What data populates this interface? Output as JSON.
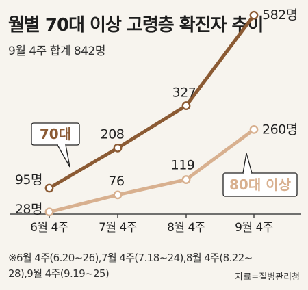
{
  "header": {
    "title": "월별 70대 이상 고령층 확진자 추이",
    "subtitle": "9월 4주 합계 842명"
  },
  "footer": {
    "note_line1": "※6월 4주(6.20~26),7월 4주(7.18~24),8월 4주(8.22~",
    "note_line2": "28),9월 4주(9.19~25)",
    "source": "자료=질병관리청"
  },
  "colors": {
    "series_70": "#8b5a33",
    "series_80": "#d8b08f",
    "axis": "#444444",
    "background": "#f7f4ee"
  },
  "chart_data": {
    "type": "line",
    "categories": [
      "6월 4주",
      "7월 4주",
      "8월 4주",
      "9월 4주"
    ],
    "series": [
      {
        "name": "70대",
        "values": [
          95,
          208,
          327,
          582
        ],
        "labels": [
          "95명",
          "208",
          "327",
          "582명"
        ],
        "color": "#8b5a33"
      },
      {
        "name": "80대 이상",
        "values": [
          28,
          76,
          119,
          260
        ],
        "labels": [
          "28명",
          "76",
          "119",
          "260명"
        ],
        "color": "#d8b08f"
      }
    ],
    "title": "월별 70대 이상 고령층 확진자 추이",
    "xlabel": "",
    "ylabel": "",
    "unit": "명",
    "ylim": [
      0,
      640
    ],
    "grid": false,
    "legend": "callout-labels"
  }
}
